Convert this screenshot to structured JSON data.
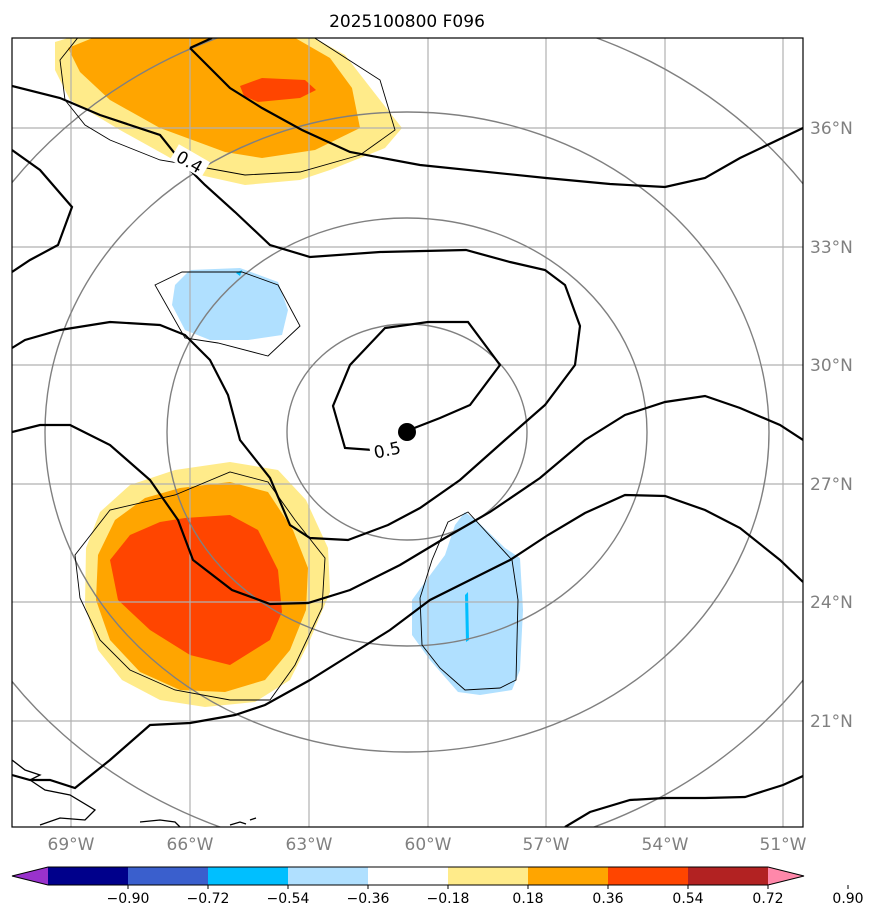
{
  "title": "2025100800 F096",
  "map": {
    "lon_labels": [
      "69°W",
      "66°W",
      "63°W",
      "60°W",
      "57°W",
      "54°W",
      "51°W"
    ],
    "lat_labels": [
      "36°N",
      "33°N",
      "30°N",
      "27°N",
      "24°N",
      "21°N"
    ],
    "lon_range": [
      -70.5,
      -50.6
    ],
    "lat_range": [
      18.0,
      38.0
    ],
    "contour_labels": [
      "0.4",
      "0.5"
    ],
    "center_marker": {
      "lon": -60.5,
      "lat": 28.3
    },
    "gridlines": true,
    "colors": {
      "contour": "#000000",
      "range_rings": "#808080",
      "grid": "#b0b0b0",
      "tick_labels": "#808080"
    }
  },
  "colorbar": {
    "ticks": [
      "−0.90",
      "−0.72",
      "−0.54",
      "−0.36",
      "−0.18",
      "0.18",
      "0.36",
      "0.54",
      "0.72",
      "0.90"
    ],
    "colors": [
      "#9932cc",
      "#00008b",
      "#3a5fcd",
      "#00bfff",
      "#b0e0ff",
      "#ffffff",
      "#ffeb8a",
      "#ffa500",
      "#ff4500",
      "#b22222",
      "#ff88aa"
    ],
    "extend": "both"
  }
}
